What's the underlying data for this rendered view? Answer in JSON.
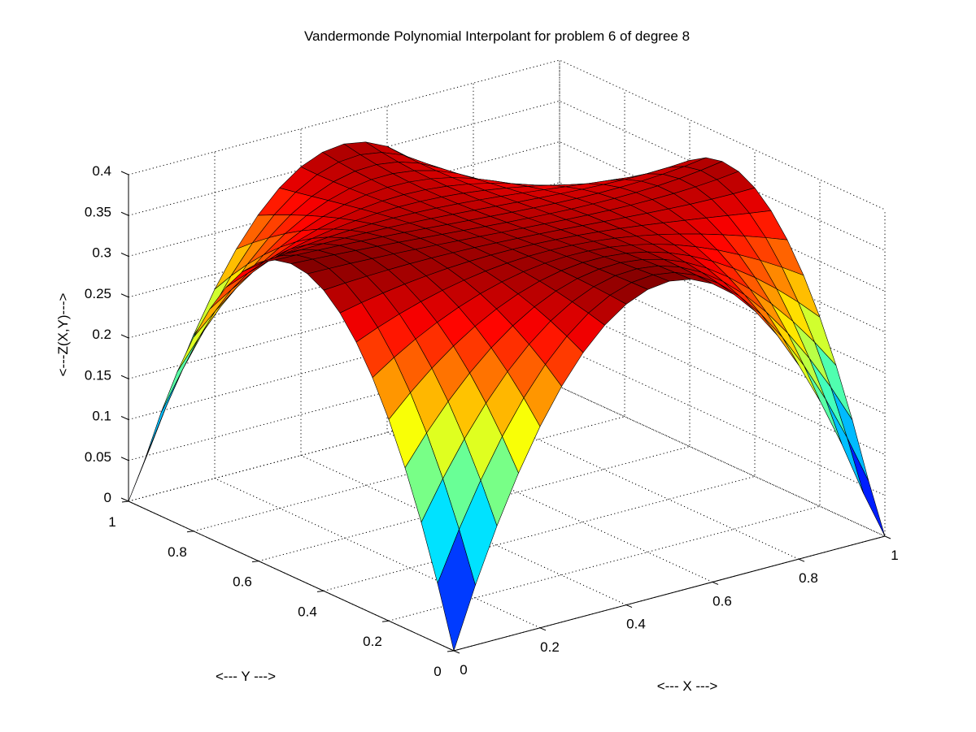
{
  "chart_data": {
    "type": "surface",
    "title": "Vandermonde Polynomial Interpolant for problem 6 of degree 8",
    "xlabel": "<--- X --->",
    "ylabel": "<--- Y --->",
    "zlabel": "<---Z(X,Y)--->",
    "xlim": [
      0,
      1
    ],
    "ylim": [
      0,
      1
    ],
    "zlim": [
      0,
      0.4
    ],
    "xticks": [
      0,
      0.2,
      0.4,
      0.6,
      0.8,
      1
    ],
    "xtick_labels": [
      "0",
      "0.2",
      "0.4",
      "0.6",
      "0.8",
      "1"
    ],
    "yticks": [
      0,
      0.2,
      0.4,
      0.6,
      0.8,
      1
    ],
    "ytick_labels": [
      "0",
      "0.2",
      "0.4",
      "0.6",
      "0.8",
      "1"
    ],
    "zticks": [
      0,
      0.05,
      0.1,
      0.15,
      0.2,
      0.25,
      0.3,
      0.35,
      0.4
    ],
    "ztick_labels": [
      "0",
      "0.05",
      "0.1",
      "0.15",
      "0.2",
      "0.25",
      "0.3",
      "0.35",
      "0.4"
    ],
    "grid": true,
    "colormap": "jet",
    "mesh_divisions": 20,
    "surface_corner_values": {
      "z_at_corners": 0.0,
      "z_at_center": 0.39
    },
    "sample_values": [
      {
        "x": 0.0,
        "y": 0.0,
        "z": 0.0
      },
      {
        "x": 0.5,
        "y": 0.0,
        "z": 0.135
      },
      {
        "x": 0.0,
        "y": 0.5,
        "z": 0.135
      },
      {
        "x": 1.0,
        "y": 0.5,
        "z": 0.095
      },
      {
        "x": 0.5,
        "y": 1.0,
        "z": 0.095
      },
      {
        "x": 0.5,
        "y": 0.5,
        "z": 0.39
      },
      {
        "x": 1.0,
        "y": 0.0,
        "z": 0.01
      },
      {
        "x": 0.0,
        "y": 1.0,
        "z": 0.01
      },
      {
        "x": 1.0,
        "y": 1.0,
        "z": 0.0
      }
    ]
  }
}
